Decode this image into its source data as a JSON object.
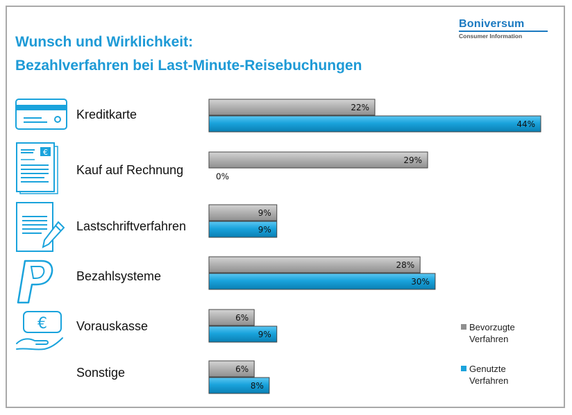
{
  "title_line1": "Wunsch und Wirklichkeit:",
  "title_line2": "Bezahlverfahren bei Last-Minute-Reisebuchungen",
  "brand": {
    "name": "Boniversum",
    "subtitle": "Consumer Information"
  },
  "colors": {
    "preferred": "#a9a9a9",
    "used": "#1aa3dc",
    "title": "#1e9ad6",
    "brand": "#1a79c0"
  },
  "icons": [
    "credit-card-icon",
    "invoice-icon",
    "direct-debit-icon",
    "payment-system-icon",
    "prepayment-icon"
  ],
  "chart_data": {
    "type": "bar",
    "orientation": "horizontal",
    "categories": [
      "Kreditkarte",
      "Kauf auf Rechnung",
      "Lastschriftverfahren",
      "Bezahlsysteme",
      "Vorauskasse",
      "Sonstige"
    ],
    "series": [
      {
        "name": "Bevorzugte Verfahren",
        "values": [
          22,
          29,
          9,
          28,
          6,
          6
        ],
        "labels": [
          "22%",
          "29%",
          "9%",
          "28%",
          "6%",
          "6%"
        ]
      },
      {
        "name": "Genutzte Verfahren",
        "values": [
          44,
          0,
          9,
          30,
          9,
          8
        ],
        "labels": [
          "44%",
          "0%",
          "9%",
          "30%",
          "9%",
          "8%"
        ]
      }
    ],
    "xlim": [
      0,
      44
    ],
    "grid": false,
    "legend_position": "bottom-right"
  }
}
